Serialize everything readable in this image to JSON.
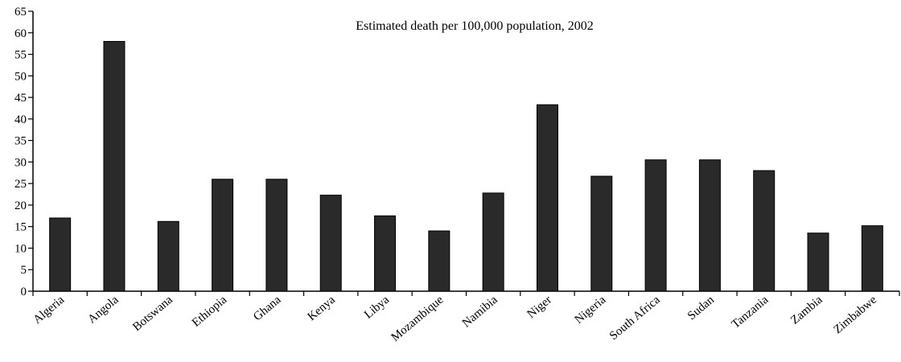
{
  "chart_data": {
    "type": "bar",
    "title": "Estimated death per 100,000 population, 2002",
    "xlabel": "",
    "ylabel": "",
    "ylim": [
      0,
      65
    ],
    "yticks": [
      0,
      5,
      10,
      15,
      20,
      25,
      30,
      35,
      40,
      45,
      50,
      55,
      60,
      65
    ],
    "grid": false,
    "legend": "none",
    "bar_color": "#2a2a2a",
    "categories": [
      "Algeria",
      "Angola",
      "Botswana",
      "Ethiopia",
      "Ghana",
      "Kenya",
      "Libya",
      "Mozambique",
      "Namibia",
      "Niger",
      "Nigeria",
      "South Africa",
      "Sudan",
      "Tanzania",
      "Zambia",
      "Zimbabwe"
    ],
    "values": [
      17,
      58,
      16.2,
      26,
      26,
      22.3,
      17.5,
      14,
      22.8,
      43.3,
      26.7,
      30.5,
      30.5,
      28,
      13.5,
      15.2
    ]
  }
}
